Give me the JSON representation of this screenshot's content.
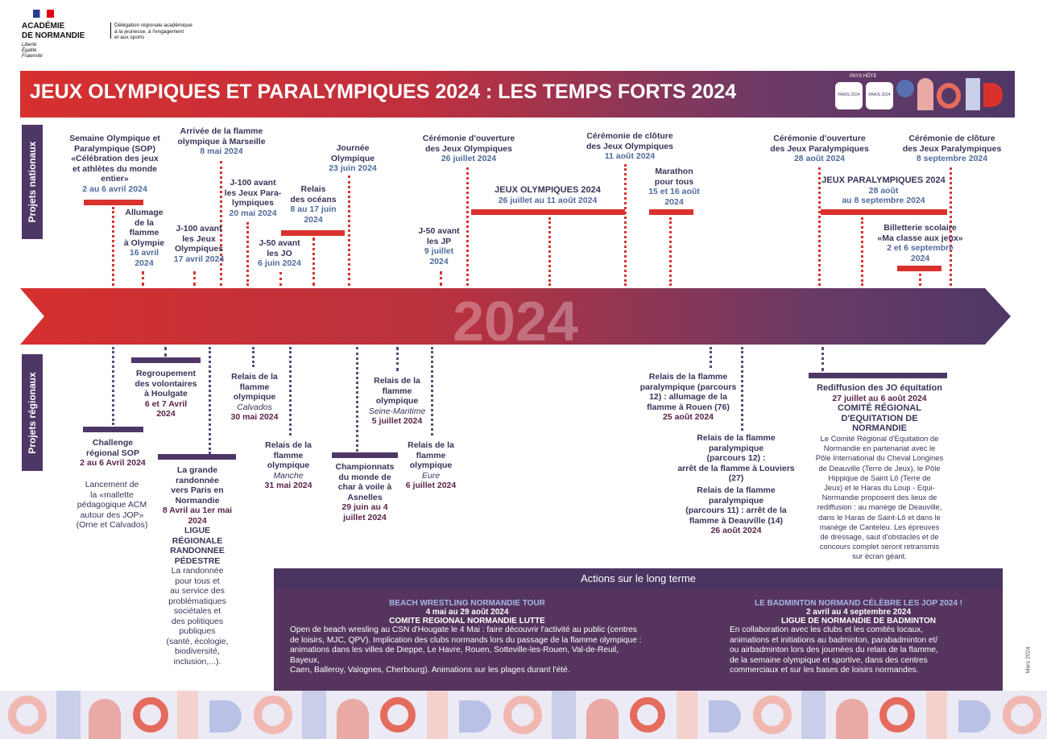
{
  "header": {
    "academie": "ACADÉMIE",
    "normandie": "DE NORMANDIE",
    "motto": [
      "Liberté",
      "Égalité",
      "Fraternité"
    ],
    "delegation": [
      "Délégation régionale académique",
      "à la jeunesse, à l'engagement",
      "et aux sports"
    ]
  },
  "banner": {
    "title": "JEUX OLYMPIQUES ET PARALYMPIQUES 2024 : LES TEMPS FORTS 2024",
    "pays_hote": "PAYS HÔTE",
    "logo_small": "PARIS 2024"
  },
  "side_labels": {
    "national": "Projets nationaux",
    "regional": "Projets régionaux"
  },
  "timeline": {
    "year": "2024"
  },
  "national": {
    "sop": {
      "lines": [
        "Semaine Olympique et",
        "Paralympique (SOP)",
        "«Célébration des jeux",
        "et athlètes du monde",
        "entier»"
      ],
      "date": "2 au 6 avril 2024"
    },
    "allumage": {
      "lines": [
        "Allumage",
        "de la",
        "flamme",
        "à Olympie"
      ],
      "date": [
        "16 avril",
        "2024"
      ]
    },
    "arrivee": {
      "lines": [
        "Arrivée de la flamme",
        "olympique à Marseille"
      ],
      "date": "8 mai 2024"
    },
    "j100jo": {
      "lines": [
        "J-100 avant",
        "les Jeux",
        "Olympiques"
      ],
      "date": "17 avril 2024"
    },
    "j100para": {
      "lines": [
        "J-100 avant",
        "les Jeux Para-",
        "lympiques"
      ],
      "date": "20 mai 2024"
    },
    "j50jo": {
      "lines": [
        "J-50 avant",
        "les JO"
      ],
      "date": "6 juin 2024"
    },
    "relais_oceans": {
      "lines": [
        "Relais",
        "des océans"
      ],
      "date": [
        "8 au 17 juin",
        "2024"
      ]
    },
    "journee": {
      "lines": [
        "Journée",
        "Olympique"
      ],
      "date": "23 juin 2024"
    },
    "j50jp": {
      "lines": [
        "J-50 avant",
        "les JP"
      ],
      "date": [
        "9 juillet",
        "2024"
      ]
    },
    "ceremonie_ouv_jo": {
      "lines": [
        "Cérémonie d'ouverture",
        "des Jeux Olympiques"
      ],
      "date": "26 juillet 2024"
    },
    "jo2024": {
      "lines": [
        "JEUX OLYMPIQUES 2024"
      ],
      "date": "26 juillet au 11 août 2024"
    },
    "ceremonie_clo_jo": {
      "lines": [
        "Cérémonie de clôture",
        "des Jeux Olympiques"
      ],
      "date": "11 août 2024"
    },
    "marathon": {
      "lines": [
        "Marathon",
        "pour tous"
      ],
      "date": [
        "15 et 16 août",
        "2024"
      ]
    },
    "ceremonie_ouv_jp": {
      "lines": [
        "Cérémonie d'ouverture",
        "des Jeux Paralympiques"
      ],
      "date": "28 août 2024"
    },
    "jp2024": {
      "lines": [
        "JEUX PARALYMPIQUES 2024"
      ],
      "date": [
        "28 août",
        "au 8 septembre 2024"
      ]
    },
    "ceremonie_clo_jp": {
      "lines": [
        "Cérémonie de clôture",
        "des Jeux Paralympiques"
      ],
      "date": "8 septembre 2024"
    },
    "billetterie": {
      "lines": [
        "Billetterie scolaire",
        "«Ma classe aux jeux»"
      ],
      "date": [
        "2 et 6 septembre",
        "2024"
      ]
    }
  },
  "regional": {
    "regroupement": {
      "lines": [
        "Regroupement",
        "des volontaires",
        "à Houlgate"
      ],
      "date": [
        "6 et 7 Avril",
        "2024"
      ]
    },
    "challenge": {
      "lines": [
        "Challenge",
        "régional SOP"
      ],
      "date": "2 au 6 Avril 2024"
    },
    "mallette": {
      "lines": [
        "Lancement de",
        "la «mallette",
        "pédagogique ACM",
        "autour des JOP»",
        "(Orne et Calvados)"
      ]
    },
    "randonnee": {
      "lines": [
        "La grande",
        "randonnée",
        "vers Paris en",
        "Normandie"
      ],
      "date": [
        "8 Avril au 1er mai",
        "2024"
      ],
      "org": [
        "LIGUE",
        "RÉGIONALE",
        "RANDONNEE",
        "PÉDESTRE"
      ],
      "desc": [
        "La randonnée",
        "pour tous et",
        "au service des",
        "problématiques",
        "sociétales et",
        "des politiques",
        "publiques",
        "(santé, écologie,",
        "biodiversité,",
        "inclusion,...)."
      ]
    },
    "relais_calvados": {
      "lines": [
        "Relais de la",
        "flamme",
        "olympique"
      ],
      "place": "Calvados",
      "date": "30 mai 2024"
    },
    "relais_manche": {
      "lines": [
        "Relais de la",
        "flamme",
        "olympique"
      ],
      "place": "Manche",
      "date": "31 mai 2024"
    },
    "championnats": {
      "lines": [
        "Championnats",
        "du monde de",
        "char à voile à",
        "Asnelles"
      ],
      "date": [
        "29 juin au 4",
        "juillet 2024"
      ]
    },
    "relais_seine": {
      "lines": [
        "Relais de la",
        "flamme",
        "olympique"
      ],
      "place": "Seine-Maritime",
      "date": "5 juillet 2024"
    },
    "relais_eure": {
      "lines": [
        "Relais de la",
        "flamme",
        "olympique"
      ],
      "place": "Eure",
      "date": "6 juillet 2024"
    },
    "para_rouen": {
      "lines": [
        "Relais de la flamme",
        "paralympique (parcours",
        "12) : allumage de la",
        "flamme à Rouen (76)"
      ],
      "date": "25 août 2024"
    },
    "para_louviers": {
      "lines": [
        "Relais de la flamme",
        "paralympique",
        "(parcours 12) :",
        "arrêt de la flamme à Louviers",
        "(27)"
      ]
    },
    "para_deauville": {
      "lines": [
        "Relais de la flamme",
        "paralympique",
        "(parcours 11) : arrêt de la",
        "flamme à Deauville (14)"
      ],
      "date": "26 août 2024"
    },
    "equitation": {
      "lines": [
        "Rediffusion des JO équitation"
      ],
      "date": "27 juillet au 6 août 2024",
      "org": [
        "COMITÉ RÉGIONAL",
        "D'EQUITATION DE",
        "NORMANDIE"
      ],
      "desc": [
        "Le Comité Régional d'Equitation de",
        "Normandie en partenariat avec le",
        "Pôle International du Cheval Longines",
        "de Deauville (Terre de Jeux), le Pôle",
        "Hippique de Saint Lô (Terre de",
        "Jeux) et le Haras du Loup - Equi-",
        "Normandie proposent des lieux de",
        "rediffusion : au manège de Deauville,",
        "dans le Haras de Saint-Lô et dans le",
        "manège de Canteleu. Les épreuves",
        "de dressage, saut d'obstacles et de",
        "concours complet seront retransmis",
        "sur écran géant."
      ]
    }
  },
  "long_terme": {
    "title": "Actions sur le long terme",
    "left": {
      "title": "BEACH WRESTLING NORMANDIE TOUR",
      "date": "4 mai au 29 août 2024",
      "org": "COMITE REGIONAL NORMANDIE LUTTE",
      "body": [
        "Open de beach wresling au CSN d'Hougate le 4 Mai : faire découvrir l'activité au public (centres",
        "de loisirs, MJC, QPV). Implication des clubs normands lors du passage de la flamme olympique :",
        "animations dans les villes de Dieppe, Le Havre, Rouen, Sotteville-les-Rouen, Val-de-Reuil, Bayeux,",
        "Caen, Balleroy, Valognes, Cherbourg). Animations sur les plages durant l'été."
      ]
    },
    "right": {
      "title": "LE BADMINTON NORMAND CÉLÈBRE LES JOP 2024 !",
      "date": "2 avril au 4 septembre 2024",
      "org": "LIGUE DE NORMANDIE DE BADMINTON",
      "body": [
        "En collaboration avec les clubs et les comités locaux,",
        "animations et initiations au badminton, parabadminton et/",
        "ou airbadminton lors des journées du relais de la flamme,",
        "de la semaine olympique et sportive, dans des centres",
        "commerciaux et sur les bases de loisirs normandes."
      ]
    }
  },
  "footer": {
    "date_vertical": "Mars 2024"
  },
  "colors": {
    "red": "#d9322e",
    "purple": "#4e3766",
    "blue_date": "#4f6b9e"
  }
}
